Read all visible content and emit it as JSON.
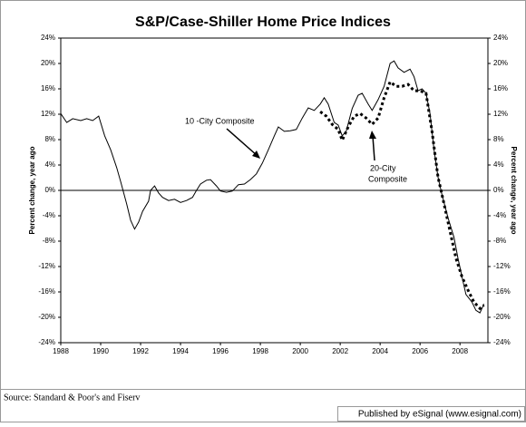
{
  "chart_data": {
    "type": "line",
    "title": "S&P/Case-Shiller Home Price Indices",
    "y_label": "Percent change, year ago",
    "y2_label": "Percent change, year ago",
    "source": "Source: Standard & Poor's and Fiserv",
    "publisher": "Published by eSignal (www.esignal.com)",
    "annotations": [
      "10 -City Composite",
      "20-City",
      "Composite"
    ],
    "xlim": [
      1988,
      2009.4
    ],
    "xticks": [
      1988,
      1990,
      1992,
      1994,
      1996,
      1998,
      2000,
      2002,
      2004,
      2006,
      2008
    ],
    "ylim": [
      -24,
      24
    ],
    "yticks": [
      {
        "value": -24,
        "label": "-24%"
      },
      {
        "value": -20,
        "label": "-20%"
      },
      {
        "value": -16,
        "label": "-16%"
      },
      {
        "value": -12,
        "label": "-12%"
      },
      {
        "value": -8,
        "label": "-8%"
      },
      {
        "value": -4,
        "label": "-4%"
      },
      {
        "value": 0,
        "label": "0%"
      },
      {
        "value": 4,
        "label": "4%"
      },
      {
        "value": 8,
        "label": "8%"
      },
      {
        "value": 12,
        "label": "12%"
      },
      {
        "value": 16,
        "label": "16%"
      },
      {
        "value": 20,
        "label": "20%"
      },
      {
        "value": 24,
        "label": "24%"
      }
    ],
    "y2lim": [
      -24,
      24
    ],
    "y2ticks": [
      {
        "value": -24,
        "label": "-24%"
      },
      {
        "value": -20,
        "label": "-20%"
      },
      {
        "value": -16,
        "label": "-16%"
      },
      {
        "value": -12,
        "label": "-12%"
      },
      {
        "value": -8,
        "label": "-8%"
      },
      {
        "value": -4,
        "label": "-4%"
      },
      {
        "value": 0,
        "label": "0%"
      },
      {
        "value": 4,
        "label": "4%"
      },
      {
        "value": 8,
        "label": "8%"
      },
      {
        "value": 12,
        "label": "12%"
      },
      {
        "value": 16,
        "label": "16%"
      },
      {
        "value": 20,
        "label": "20%"
      },
      {
        "value": 24,
        "label": "24%"
      }
    ],
    "zero_line": true,
    "series": [
      {
        "color": "#000000",
        "dashed": false,
        "x": [
          1988.0,
          1988.3,
          1988.6,
          1989.0,
          1989.3,
          1989.6,
          1989.9,
          1990.2,
          1990.5,
          1990.8,
          1991.0,
          1991.3,
          1991.5,
          1991.7,
          1991.9,
          1992.1,
          1992.4,
          1992.5,
          1992.7,
          1992.9,
          1993.1,
          1993.4,
          1993.7,
          1994.0,
          1994.3,
          1994.6,
          1994.8,
          1995.0,
          1995.3,
          1995.5,
          1995.8,
          1996.0,
          1996.3,
          1996.6,
          1996.9,
          1997.2,
          1997.5,
          1997.8,
          1998.1,
          1998.4,
          1998.7,
          1998.9,
          1999.2,
          1999.5,
          1999.8,
          2000.1,
          2000.4,
          2000.7,
          2001.0,
          2001.2,
          2001.4,
          2001.7,
          2001.9,
          2002.1,
          2002.3,
          2002.6,
          2002.9,
          2003.1,
          2003.4,
          2003.6,
          2003.9,
          2004.2,
          2004.5,
          2004.7,
          2004.9,
          2005.2,
          2005.5,
          2005.7,
          2005.9,
          2006.1,
          2006.3,
          2006.5,
          2006.7,
          2006.9,
          2007.1,
          2007.4,
          2007.7,
          2007.9,
          2008.1,
          2008.3,
          2008.6,
          2008.8,
          2009.0,
          2009.2
        ],
        "values": [
          12.1,
          10.7,
          11.3,
          11,
          11.3,
          11,
          11.7,
          8.6,
          6.4,
          3.6,
          1.4,
          -2.1,
          -4.7,
          -6.1,
          -5,
          -3.3,
          -1.7,
          0,
          0.7,
          -0.4,
          -1.1,
          -1.6,
          -1.4,
          -1.9,
          -1.6,
          -1.1,
          0,
          1,
          1.6,
          1.7,
          0.7,
          -0.1,
          -0.3,
          -0.1,
          0.9,
          1,
          1.7,
          2.6,
          4.3,
          6.4,
          8.6,
          10,
          9.3,
          9.4,
          9.6,
          11.4,
          13,
          12.6,
          13.6,
          14.6,
          13.6,
          10.7,
          10.3,
          8.6,
          9.3,
          12.9,
          15,
          15.3,
          13.6,
          12.6,
          14.3,
          16.4,
          20,
          20.4,
          19.3,
          18.6,
          19.1,
          17.9,
          15.7,
          16,
          15.3,
          12.1,
          6.4,
          2.1,
          -0.7,
          -4.3,
          -7.4,
          -10.7,
          -13.6,
          -16.4,
          -17.6,
          -18.9,
          -19.3,
          -17.9
        ]
      },
      {
        "color": "#000000",
        "dashed": true,
        "x": [
          2001.0,
          2001.3,
          2001.6,
          2001.9,
          2002.1,
          2002.4,
          2002.7,
          2003.0,
          2003.3,
          2003.6,
          2003.9,
          2004.2,
          2004.5,
          2004.8,
          2005.1,
          2005.4,
          2005.7,
          2006.0,
          2006.3,
          2006.6,
          2006.9,
          2007.2,
          2007.5,
          2007.8,
          2008.1,
          2008.4,
          2008.7,
          2009.0,
          2009.2
        ],
        "values": [
          12.4,
          11.7,
          10.4,
          9.6,
          7.9,
          10,
          11.7,
          12.1,
          11.4,
          10.4,
          11.4,
          14.6,
          17.1,
          16.4,
          16.4,
          16.7,
          15.7,
          15.7,
          15.3,
          9.3,
          2.1,
          -2.1,
          -6.4,
          -10.7,
          -13.6,
          -15.7,
          -17.6,
          -18.6,
          -18.1
        ]
      }
    ]
  }
}
